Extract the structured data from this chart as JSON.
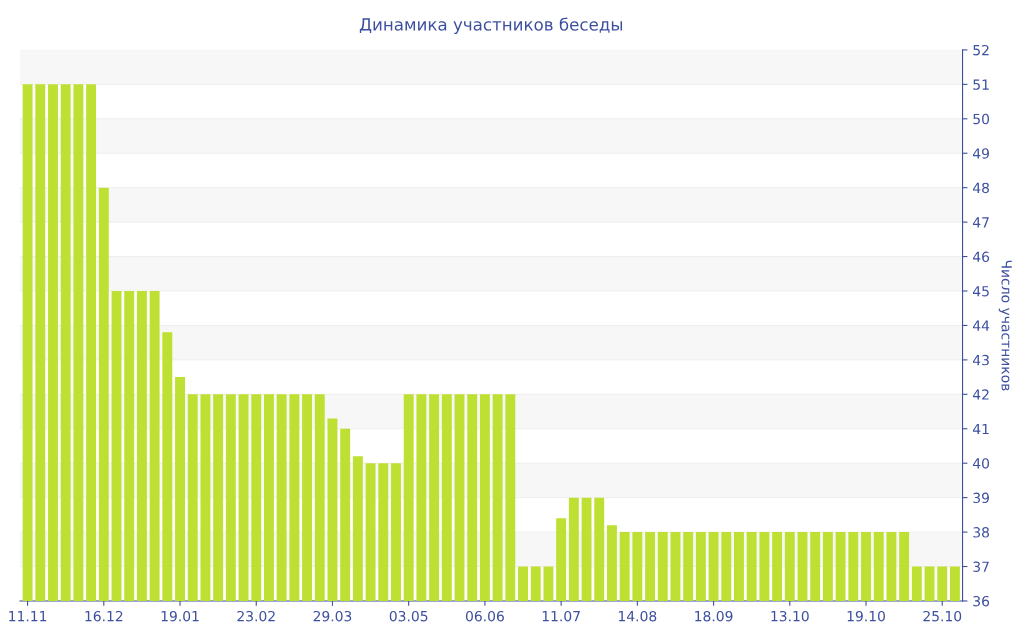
{
  "chart_data": {
    "type": "bar",
    "title": "Динамика участников беседы",
    "ylabel": "Число участников",
    "categories": [
      "11.11",
      null,
      null,
      null,
      null,
      null,
      "16.12",
      null,
      null,
      null,
      null,
      null,
      "19.01",
      null,
      null,
      null,
      null,
      null,
      "23.02",
      null,
      null,
      null,
      null,
      null,
      "29.03",
      null,
      null,
      null,
      null,
      null,
      "03.05",
      null,
      null,
      null,
      null,
      null,
      "06.06",
      null,
      null,
      null,
      null,
      null,
      "11.07",
      null,
      null,
      null,
      null,
      null,
      "14.08",
      null,
      null,
      null,
      null,
      null,
      "18.09",
      null,
      null,
      null,
      null,
      null,
      "13.10",
      null,
      null,
      null,
      null,
      null,
      "19.10",
      null,
      null,
      null,
      null,
      null,
      "25.10",
      null
    ],
    "values": [
      51,
      51,
      51,
      51,
      51,
      51,
      48,
      45,
      45,
      45,
      45,
      43.8,
      42.5,
      42,
      42,
      42,
      42,
      42,
      42,
      42,
      42,
      42,
      42,
      42,
      41.3,
      41,
      40.2,
      40,
      40,
      40,
      42,
      42,
      42,
      42,
      42,
      42,
      42,
      42,
      42,
      37,
      37,
      37,
      38.4,
      39,
      39,
      39,
      38.2,
      38,
      38,
      38,
      38,
      38,
      38,
      38,
      38,
      38,
      38,
      38,
      38,
      38,
      38,
      38,
      38,
      38,
      38,
      38,
      38,
      38,
      38,
      38,
      37,
      37,
      37,
      37
    ],
    "color": "#bde032",
    "ylim": [
      36,
      52
    ],
    "yticks": [
      36,
      37,
      38,
      39,
      40,
      41,
      42,
      43,
      44,
      45,
      46,
      47,
      48,
      49,
      50,
      51,
      52
    ],
    "grid": "y"
  }
}
